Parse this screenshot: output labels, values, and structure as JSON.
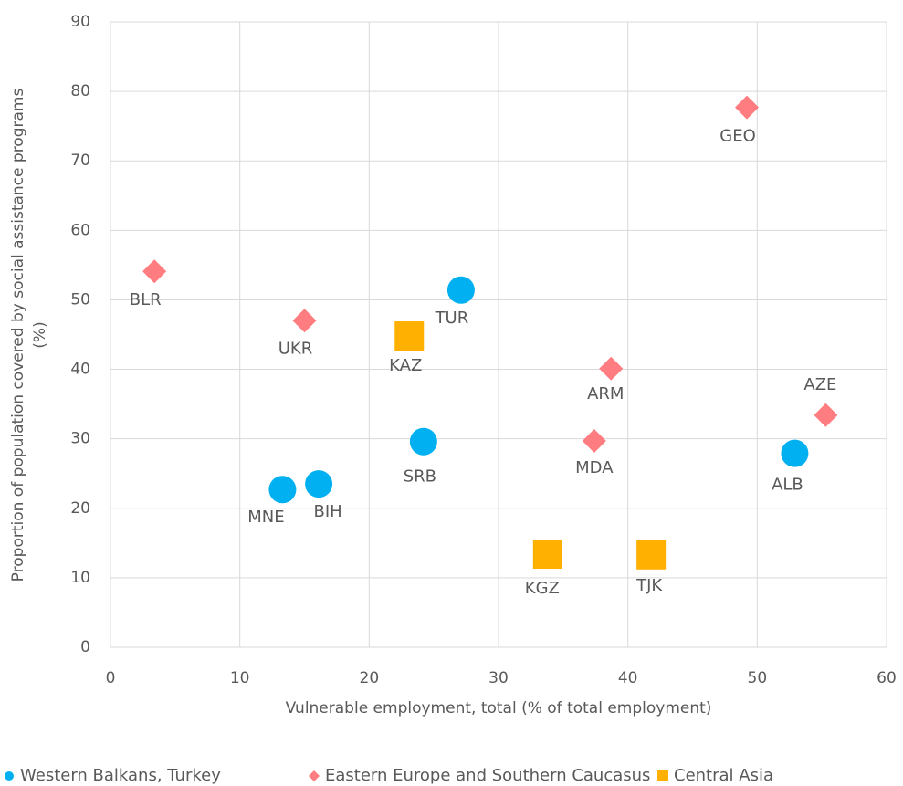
{
  "chart_data": {
    "type": "scatter",
    "xlabel": "Vulnerable employment, total (% of total employment)",
    "ylabel": [
      "Proportion of population covered by social assistance programs",
      "(%)"
    ],
    "xlim": [
      0,
      60
    ],
    "xticks": [
      0,
      10,
      20,
      30,
      40,
      50,
      60
    ],
    "ylim": [
      0,
      90
    ],
    "yticks": [
      0,
      10,
      20,
      30,
      40,
      50,
      60,
      70,
      80,
      90
    ],
    "grid": true,
    "legend": "bottom",
    "series": [
      {
        "name": "Western Balkans, Turkey",
        "color": "#00b0f0",
        "marker": "circle",
        "x": [
          13.3,
          16.1,
          24.2,
          27.1,
          52.9
        ],
        "values": [
          22.7,
          23.5,
          29.6,
          51.4,
          27.9
        ],
        "labels": [
          "MNE",
          "BIH",
          "SRB",
          "TUR",
          "ALB"
        ]
      },
      {
        "name": "Eastern Europe and Southern Caucasus",
        "color": "#ff7c80",
        "marker": "diamond",
        "x": [
          3.4,
          15.0,
          38.7,
          37.4,
          49.2,
          55.3
        ],
        "values": [
          54.1,
          47.0,
          40.1,
          29.7,
          77.7,
          33.4
        ],
        "labels": [
          "BLR",
          "UKR",
          "ARM",
          "MDA",
          "GEO",
          "AZE"
        ]
      },
      {
        "name": "Central Asia",
        "color": "#ffb000",
        "marker": "square",
        "x": [
          23.1,
          33.8,
          41.8
        ],
        "values": [
          44.8,
          13.4,
          13.3
        ],
        "labels": [
          "KAZ",
          "KGZ",
          "TJK"
        ]
      }
    ]
  }
}
